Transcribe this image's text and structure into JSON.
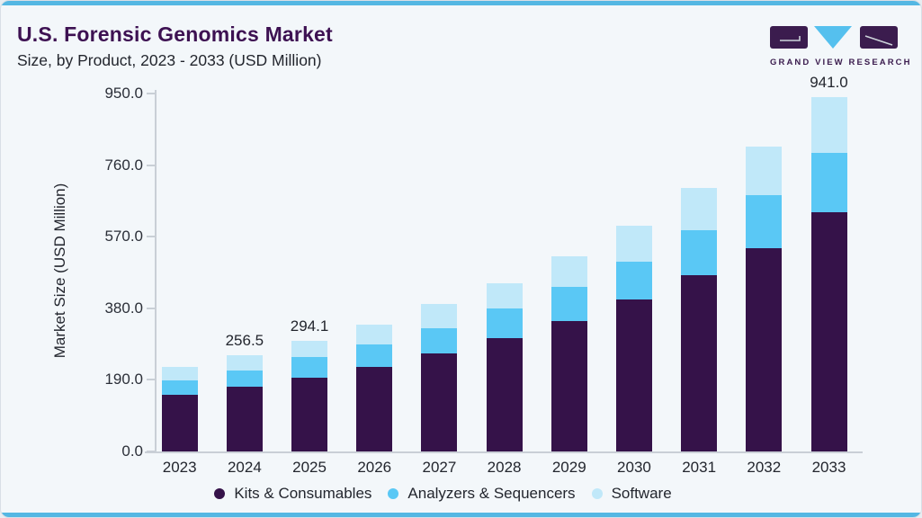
{
  "header": {
    "title": "U.S. Forensic Genomics Market",
    "subtitle": "Size, by Product, 2023 - 2033 (USD Million)",
    "logo_text": "GRAND VIEW RESEARCH"
  },
  "colors": {
    "accent_strip": "#54b7e3",
    "card_background": "#f3f7fa",
    "title_text": "#3d1152",
    "body_text": "#23262e",
    "axis": "#c9cfd6",
    "logo_purple": "#3b1c4e",
    "logo_blue": "#55c0ee"
  },
  "chart_data": {
    "type": "bar",
    "stacked": true,
    "title": "U.S. Forensic Genomics Market Size, by Product, 2023 - 2033 (USD Million)",
    "categories": [
      "2023",
      "2024",
      "2025",
      "2026",
      "2027",
      "2028",
      "2029",
      "2030",
      "2031",
      "2032",
      "2033"
    ],
    "series": [
      {
        "name": "Kits & Consumables",
        "color": "#351249",
        "values": [
          149.4,
          171.5,
          196.9,
          224.9,
          259.8,
          300.6,
          347.0,
          402.7,
          467.5,
          539.7,
          635.0
        ]
      },
      {
        "name": "Analyzers & Sequencers",
        "color": "#5ac8f5",
        "values": [
          39.9,
          43.8,
          54.5,
          58.3,
          66.5,
          79.7,
          89.7,
          102.1,
          118.6,
          139.5,
          158.0
        ]
      },
      {
        "name": "Software",
        "color": "#c0e8f9",
        "values": [
          35.0,
          41.2,
          42.7,
          53.0,
          64.0,
          66.3,
          80.7,
          95.4,
          112.1,
          130.3,
          148.0
        ]
      }
    ],
    "totals": [
      224.3,
      256.5,
      294.1,
      336.2,
      390.3,
      446.6,
      517.4,
      600.2,
      698.2,
      809.5,
      941.0
    ],
    "bar_labels": {
      "2024": "256.5",
      "2025": "294.1",
      "2033": "941.0"
    },
    "xlabel": "",
    "ylabel": "Market Size (USD Million)",
    "ylim": [
      0,
      950
    ],
    "yticks": [
      0,
      190,
      380,
      570,
      760,
      950
    ],
    "grid": false,
    "legend_position": "bottom"
  }
}
